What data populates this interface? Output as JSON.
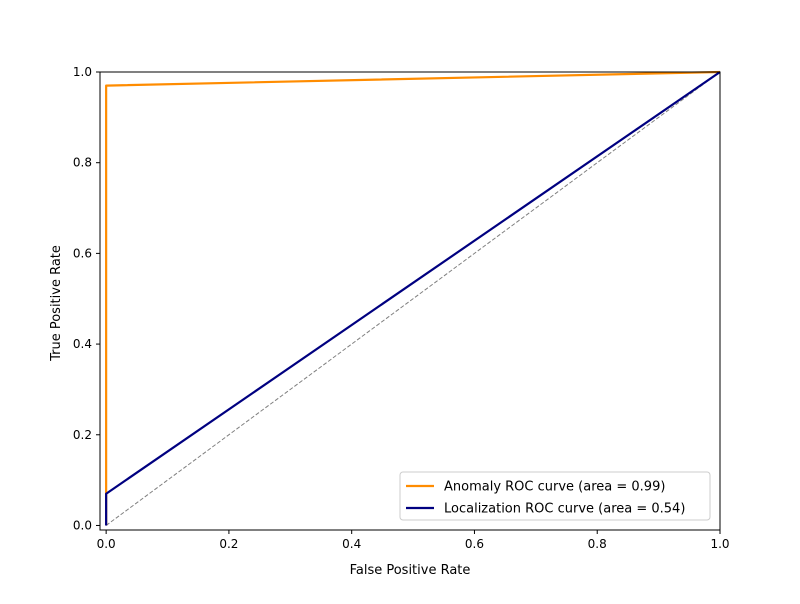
{
  "chart_data": {
    "type": "line",
    "title": "",
    "xlabel": "False Positive Rate",
    "ylabel": "True Positive Rate",
    "xlim": [
      -0.01,
      1.0
    ],
    "ylim": [
      -0.01,
      1.0
    ],
    "x_ticks": [
      0.0,
      0.2,
      0.4,
      0.6,
      0.8,
      1.0
    ],
    "y_ticks": [
      0.0,
      0.2,
      0.4,
      0.6,
      0.8,
      1.0
    ],
    "x_tick_labels": [
      "0.0",
      "0.2",
      "0.4",
      "0.6",
      "0.8",
      "1.0"
    ],
    "y_tick_labels": [
      "0.0",
      "0.2",
      "0.4",
      "0.6",
      "0.8",
      "1.0"
    ],
    "grid": false,
    "legend_position": "lower-right",
    "series": [
      {
        "name": "Anomaly ROC curve (area = 0.99)",
        "color": "#ff8c00",
        "style": "solid",
        "x": [
          0.0,
          0.0,
          1.0
        ],
        "y": [
          0.0,
          0.97,
          1.0
        ]
      },
      {
        "name": "Localization ROC curve (area = 0.54)",
        "color": "#000080",
        "style": "solid",
        "x": [
          0.0,
          0.0,
          1.0
        ],
        "y": [
          0.0,
          0.07,
          1.0
        ]
      }
    ],
    "reference_line": {
      "color": "#808080",
      "style": "dashed",
      "x": [
        0.0,
        1.0
      ],
      "y": [
        0.0,
        1.0
      ]
    }
  }
}
